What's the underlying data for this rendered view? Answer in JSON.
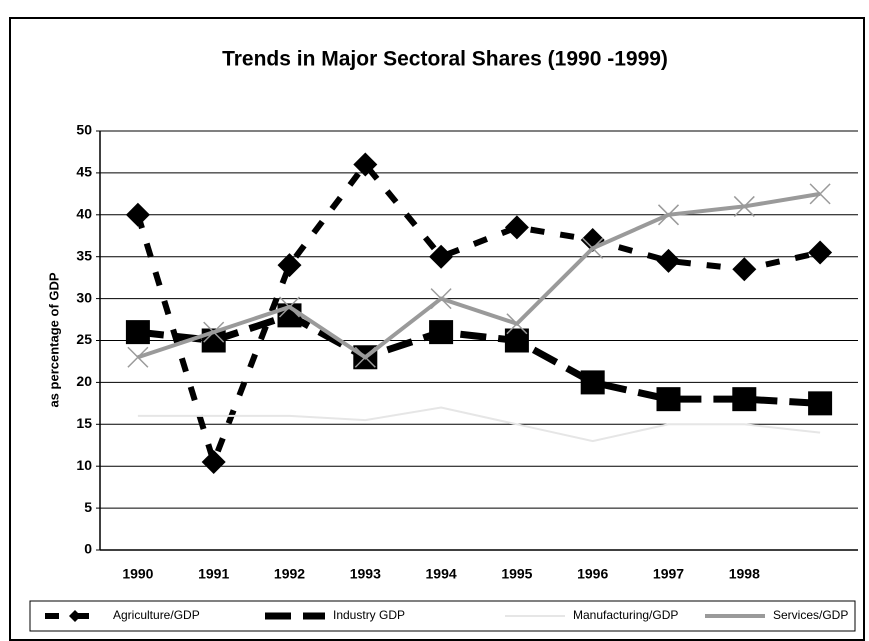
{
  "chart_data": {
    "type": "line",
    "title": "Trends in Major Sectoral Shares (1990 -1999)",
    "y_label": "as percentage of GDP",
    "categories": [
      "1990",
      "1991",
      "1992",
      "1993",
      "1994",
      "1995",
      "1996",
      "1997",
      "1998",
      null
    ],
    "series": [
      {
        "name": "Agriculture/GDP",
        "color": "#000000",
        "values": [
          40,
          10.5,
          34,
          46,
          35,
          38.5,
          37,
          34.5,
          33.5,
          35.5
        ]
      },
      {
        "name": "Industry GDP",
        "color": "#000000",
        "values": [
          26,
          25,
          28,
          23,
          26,
          25,
          20,
          18,
          18,
          17.5
        ]
      },
      {
        "name": "Manufacturing/GDP",
        "color": "#e6e6e6",
        "values": [
          16,
          16,
          16,
          15.5,
          17,
          15,
          13,
          15,
          15,
          14
        ]
      },
      {
        "name": "Services/GDP",
        "color": "#9a9a9a",
        "values": [
          23,
          26,
          29,
          23,
          30,
          27,
          36,
          40,
          41,
          42.5
        ]
      }
    ],
    "ylim": [
      0,
      50
    ],
    "yticks": [
      0,
      5,
      10,
      15,
      20,
      25,
      30,
      35,
      40,
      45,
      50
    ],
    "grid": true,
    "legend": "bottom"
  }
}
